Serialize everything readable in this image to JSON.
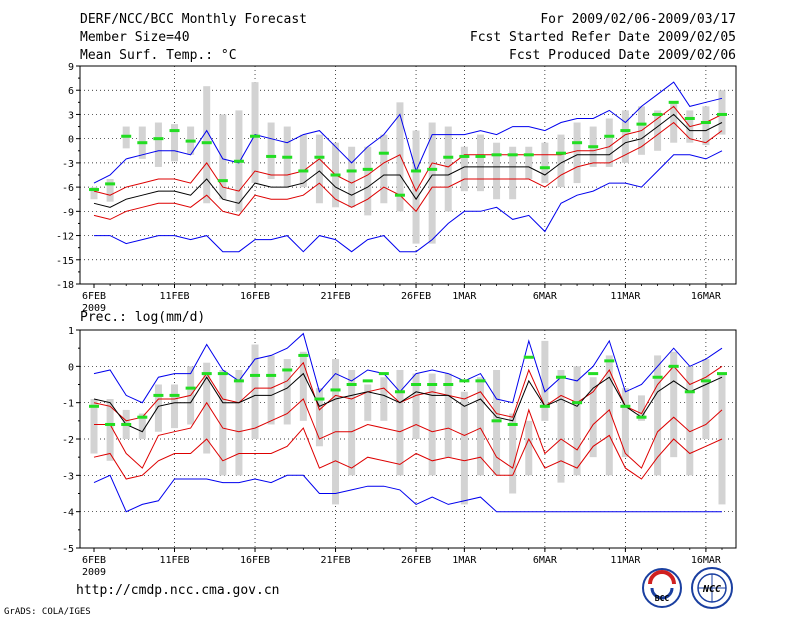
{
  "header": {
    "title": "DERF/NCC/BCC Monthly Forecast",
    "member": "Member Size=40",
    "variable": "Mean Surf. Temp.: °C",
    "period": "For 2009/02/06-2009/03/17",
    "refer": "Fcst Started Refer Date 2009/02/05",
    "produced": "Fcst Produced Date 2009/02/06"
  },
  "footer": {
    "url": "http://cmdp.ncc.cma.gov.cn",
    "grads": "GrADS: COLA/IGES",
    "logo1": "BCC",
    "logo2": "NCC"
  },
  "colors": {
    "max_min": "#0000ee",
    "spread": "#dd0000",
    "mean": "#000000",
    "box": "#d3d3d3",
    "marker": "#22dd22"
  },
  "chart_data": [
    {
      "type": "line",
      "title": "Mean Surf. Temp.: °C",
      "ylim": [
        -18,
        9
      ],
      "yticks": [
        -18,
        -15,
        -12,
        -9,
        -6,
        -3,
        0,
        3,
        6,
        9
      ],
      "grid": true,
      "xticks": [
        {
          "day": 0,
          "label": "6FEB",
          "sublabel": "2009"
        },
        {
          "day": 5,
          "label": "11FEB"
        },
        {
          "day": 10,
          "label": "16FEB"
        },
        {
          "day": 15,
          "label": "21FEB"
        },
        {
          "day": 20,
          "label": "26FEB"
        },
        {
          "day": 23,
          "label": "1MAR"
        },
        {
          "day": 28,
          "label": "6MAR"
        },
        {
          "day": 33,
          "label": "11MAR"
        },
        {
          "day": 38,
          "label": "16MAR"
        }
      ],
      "x": [
        0,
        1,
        2,
        3,
        4,
        5,
        6,
        7,
        8,
        9,
        10,
        11,
        12,
        13,
        14,
        15,
        16,
        17,
        18,
        19,
        20,
        21,
        22,
        23,
        24,
        25,
        26,
        27,
        28,
        29,
        30,
        31,
        32,
        33,
        34,
        35,
        36,
        37,
        38,
        39
      ],
      "box_low": [
        -7.5,
        -7.8,
        -1.2,
        -2.5,
        -3.5,
        -2.8,
        -2.0,
        -8.0,
        -7.5,
        -9.0,
        -5.5,
        -5.0,
        -6.0,
        -6.0,
        -8.0,
        -8.5,
        -8.5,
        -9.5,
        -8.0,
        -9.0,
        -13.0,
        -13.0,
        -9.0,
        -6.5,
        -6.5,
        -7.5,
        -7.5,
        -5.0,
        -5.5,
        -6.0,
        -5.5,
        -3.5,
        -3.5,
        -3.0,
        -2.0,
        -1.5,
        -0.5,
        -0.5,
        -0.8,
        0.5
      ],
      "box_high": [
        -6.0,
        -5.0,
        1.5,
        1.5,
        2.0,
        1.8,
        1.5,
        6.5,
        3.0,
        3.5,
        7.0,
        2.0,
        1.5,
        0.5,
        0.5,
        -0.5,
        -1.0,
        -1.0,
        0.5,
        4.5,
        1.0,
        2.0,
        1.5,
        -1.0,
        0.5,
        -0.5,
        -1.0,
        -1.0,
        -0.5,
        0.5,
        2.0,
        1.5,
        2.5,
        3.5,
        4.0,
        3.5,
        4.5,
        3.5,
        4.0,
        6.0
      ],
      "marker": [
        -6.3,
        -5.6,
        0.3,
        -0.5,
        0.0,
        1.0,
        -0.3,
        -0.5,
        -5.2,
        -2.8,
        0.3,
        -2.2,
        -2.3,
        -4.0,
        -2.3,
        -4.5,
        -4.0,
        -3.8,
        -1.8,
        -7.0,
        -4.0,
        -3.8,
        -2.3,
        -2.2,
        -2.2,
        -2.0,
        -2.0,
        -2.0,
        -3.6,
        -1.8,
        -0.5,
        -1.0,
        0.3,
        1.0,
        1.8,
        3.0,
        4.5,
        2.5,
        2.0,
        3.0
      ],
      "series": [
        {
          "name": "max",
          "role": "max_min",
          "values": [
            -5.5,
            -4.5,
            -2.5,
            -2.0,
            -1.5,
            -1.5,
            -2.0,
            1.0,
            -2.5,
            -3.0,
            0.5,
            0.0,
            -0.5,
            0.5,
            1.0,
            -1.0,
            -3.0,
            -1.0,
            0.5,
            3.0,
            -4.0,
            0.5,
            0.5,
            0.5,
            1.0,
            0.5,
            1.5,
            1.5,
            1.0,
            2.0,
            2.5,
            2.5,
            3.5,
            2.0,
            4.0,
            5.5,
            7.0,
            4.0,
            4.5,
            5.0
          ]
        },
        {
          "name": "upper",
          "role": "spread",
          "values": [
            -6.5,
            -7.0,
            -6.0,
            -5.5,
            -5.0,
            -5.0,
            -5.5,
            -3.0,
            -6.0,
            -6.5,
            -4.0,
            -4.5,
            -4.5,
            -4.0,
            -2.5,
            -4.5,
            -5.5,
            -4.5,
            -3.0,
            -2.0,
            -6.5,
            -3.0,
            -3.5,
            -2.0,
            -2.0,
            -2.0,
            -2.0,
            -2.0,
            -2.0,
            -2.0,
            -1.5,
            -1.5,
            -1.0,
            0.5,
            1.0,
            2.5,
            4.0,
            1.5,
            2.0,
            3.0
          ]
        },
        {
          "name": "mean",
          "role": "mean",
          "values": [
            -8.0,
            -8.5,
            -7.5,
            -7.0,
            -6.5,
            -6.5,
            -7.0,
            -5.0,
            -7.5,
            -8.0,
            -5.5,
            -6.0,
            -6.0,
            -5.5,
            -4.0,
            -6.0,
            -7.0,
            -6.0,
            -4.5,
            -4.5,
            -7.5,
            -4.5,
            -4.5,
            -3.5,
            -3.5,
            -3.5,
            -3.5,
            -3.5,
            -4.5,
            -3.0,
            -2.0,
            -2.0,
            -2.0,
            -0.5,
            0.0,
            1.5,
            3.0,
            1.0,
            1.0,
            2.0
          ]
        },
        {
          "name": "lower",
          "role": "spread",
          "values": [
            -9.5,
            -10.0,
            -9.0,
            -8.5,
            -8.0,
            -8.0,
            -8.5,
            -7.0,
            -9.0,
            -9.5,
            -7.0,
            -7.5,
            -7.5,
            -7.0,
            -5.5,
            -7.5,
            -8.5,
            -7.5,
            -6.0,
            -7.0,
            -9.0,
            -6.0,
            -6.0,
            -5.0,
            -5.0,
            -5.0,
            -5.0,
            -5.0,
            -6.0,
            -4.5,
            -3.5,
            -3.0,
            -3.0,
            -2.0,
            -1.0,
            0.5,
            2.0,
            0.0,
            -0.5,
            1.0
          ]
        },
        {
          "name": "min",
          "role": "max_min",
          "values": [
            -12.0,
            -12.0,
            -13.0,
            -12.5,
            -12.0,
            -12.0,
            -12.5,
            -12.0,
            -14.0,
            -14.0,
            -12.5,
            -12.5,
            -12.0,
            -14.0,
            -12.0,
            -12.5,
            -14.0,
            -12.5,
            -12.0,
            -14.0,
            -14.0,
            -12.5,
            -10.5,
            -9.0,
            -9.0,
            -8.5,
            -10.0,
            -9.5,
            -11.5,
            -8.0,
            -7.0,
            -6.5,
            -5.5,
            -5.5,
            -6.0,
            -4.0,
            -2.0,
            -2.0,
            -2.5,
            -1.5
          ]
        }
      ]
    },
    {
      "type": "line",
      "title": "Prec.: log(mm/d)",
      "ylim": [
        -5,
        1
      ],
      "yticks": [
        -5,
        -4,
        -3,
        -2,
        -1,
        0,
        1
      ],
      "grid": true,
      "xticks": [
        {
          "day": 0,
          "label": "6FEB",
          "sublabel": "2009"
        },
        {
          "day": 5,
          "label": "11FEB"
        },
        {
          "day": 10,
          "label": "16FEB"
        },
        {
          "day": 15,
          "label": "21FEB"
        },
        {
          "day": 20,
          "label": "26FEB"
        },
        {
          "day": 23,
          "label": "1MAR"
        },
        {
          "day": 28,
          "label": "6MAR"
        },
        {
          "day": 33,
          "label": "11MAR"
        },
        {
          "day": 38,
          "label": "16MAR"
        }
      ],
      "x": [
        0,
        1,
        2,
        3,
        4,
        5,
        6,
        7,
        8,
        9,
        10,
        11,
        12,
        13,
        14,
        15,
        16,
        17,
        18,
        19,
        20,
        21,
        22,
        23,
        24,
        25,
        26,
        27,
        28,
        29,
        30,
        31,
        32,
        33,
        34,
        35,
        36,
        37,
        38,
        39
      ],
      "box_low": [
        -2.4,
        -2.6,
        -2.0,
        -2.0,
        -1.8,
        -1.7,
        -1.6,
        -2.4,
        -3.0,
        -3.0,
        -2.0,
        -1.6,
        -1.6,
        -1.5,
        -2.2,
        -3.8,
        -3.0,
        -1.5,
        -1.5,
        -3.0,
        -2.0,
        -3.0,
        -2.5,
        -3.8,
        -3.0,
        -3.0,
        -3.5,
        -3.0,
        -1.5,
        -3.2,
        -3.0,
        -2.5,
        -3.0,
        -2.5,
        -1.5,
        -3.0,
        -2.5,
        -3.0,
        -2.0,
        -3.8
      ],
      "box_high": [
        -0.9,
        -0.9,
        -1.2,
        -1.3,
        -0.5,
        -0.5,
        0.0,
        0.1,
        -0.1,
        -0.1,
        0.6,
        0.3,
        0.2,
        0.4,
        -0.6,
        0.2,
        -0.1,
        -0.5,
        -0.3,
        -0.1,
        -0.2,
        -0.2,
        -0.2,
        -0.7,
        -0.3,
        -0.1,
        -1.3,
        -1.5,
        0.7,
        -0.1,
        0.0,
        -0.3,
        0.3,
        -0.6,
        -0.8,
        0.3,
        0.4,
        0.0,
        0.2,
        -0.2
      ],
      "marker": [
        -1.1,
        -1.6,
        -1.6,
        -1.4,
        -0.8,
        -0.8,
        -0.6,
        -0.2,
        -0.2,
        -0.4,
        -0.25,
        -0.25,
        -0.1,
        0.3,
        -0.9,
        -0.65,
        -0.5,
        -0.4,
        -0.2,
        -0.7,
        -0.5,
        -0.5,
        -0.5,
        -0.4,
        -0.4,
        -1.5,
        -1.6,
        0.25,
        -1.1,
        -0.3,
        -1.0,
        -0.2,
        0.15,
        -1.1,
        -1.4,
        -0.3,
        0.0,
        -0.7,
        -0.4,
        -0.2
      ],
      "series": [
        {
          "name": "max",
          "role": "max_min",
          "values": [
            -0.2,
            -0.1,
            -0.8,
            -1.0,
            -0.3,
            -0.2,
            -0.2,
            0.6,
            -0.1,
            -0.4,
            0.2,
            0.3,
            0.5,
            0.9,
            -0.7,
            -0.2,
            -0.4,
            -0.1,
            -0.2,
            -0.7,
            -0.2,
            -0.1,
            -0.2,
            -0.4,
            -0.2,
            -0.9,
            -1.0,
            0.7,
            -0.7,
            -0.3,
            -0.4,
            0.0,
            0.7,
            -0.7,
            -0.5,
            0.0,
            0.5,
            0.0,
            0.2,
            0.5
          ]
        },
        {
          "name": "upper",
          "role": "spread",
          "values": [
            -1.0,
            -1.1,
            -1.5,
            -1.4,
            -0.9,
            -0.9,
            -0.8,
            -0.2,
            -0.9,
            -1.0,
            -0.6,
            -0.6,
            -0.4,
            0.1,
            -1.2,
            -0.8,
            -0.9,
            -0.7,
            -0.6,
            -1.0,
            -0.8,
            -0.7,
            -0.8,
            -0.9,
            -0.7,
            -1.3,
            -1.4,
            -0.1,
            -1.1,
            -0.8,
            -1.0,
            -0.7,
            -0.1,
            -1.1,
            -1.3,
            -0.5,
            0.0,
            -0.5,
            -0.3,
            0.0
          ]
        },
        {
          "name": "mean",
          "role": "mean",
          "values": [
            -0.9,
            -1.0,
            -1.6,
            -1.8,
            -1.1,
            -1.0,
            -1.0,
            -0.3,
            -1.0,
            -1.0,
            -0.8,
            -0.8,
            -0.6,
            -0.2,
            -1.1,
            -0.9,
            -0.8,
            -0.7,
            -0.8,
            -1.0,
            -0.7,
            -0.8,
            -0.8,
            -1.1,
            -0.9,
            -1.4,
            -1.5,
            -0.4,
            -1.1,
            -0.9,
            -1.1,
            -0.6,
            -0.3,
            -1.1,
            -1.4,
            -0.7,
            -0.4,
            -0.7,
            -0.5,
            -0.3
          ]
        },
        {
          "name": "lower",
          "role": "spread",
          "values": [
            -1.6,
            -1.6,
            -2.4,
            -2.8,
            -1.9,
            -1.8,
            -1.7,
            -1.0,
            -1.7,
            -1.8,
            -1.7,
            -1.5,
            -1.3,
            -0.9,
            -2.0,
            -1.8,
            -1.8,
            -1.6,
            -1.7,
            -1.8,
            -1.6,
            -1.8,
            -1.7,
            -1.9,
            -1.7,
            -2.5,
            -2.8,
            -1.2,
            -2.4,
            -2.0,
            -2.3,
            -1.6,
            -1.2,
            -2.4,
            -2.8,
            -1.8,
            -1.4,
            -1.8,
            -1.6,
            -1.2
          ]
        },
        {
          "name": "lowest",
          "role": "spread",
          "values": [
            -2.5,
            -2.4,
            -3.1,
            -3.0,
            -2.6,
            -2.4,
            -2.4,
            -2.0,
            -2.6,
            -2.4,
            -2.4,
            -2.4,
            -2.2,
            -1.7,
            -2.8,
            -2.6,
            -2.8,
            -2.5,
            -2.6,
            -2.7,
            -2.4,
            -2.6,
            -2.5,
            -2.6,
            -2.5,
            -3.0,
            -3.0,
            -2.0,
            -2.8,
            -2.6,
            -2.8,
            -2.2,
            -1.9,
            -2.8,
            -3.1,
            -2.5,
            -2.0,
            -2.4,
            -2.2,
            -2.0
          ]
        },
        {
          "name": "min",
          "role": "max_min",
          "values": [
            -3.2,
            -3.0,
            -4.0,
            -3.8,
            -3.7,
            -3.1,
            -3.1,
            -3.1,
            -3.2,
            -3.2,
            -3.1,
            -3.2,
            -3.0,
            -3.0,
            -3.5,
            -3.5,
            -3.4,
            -3.3,
            -3.3,
            -3.4,
            -3.8,
            -3.6,
            -3.8,
            -3.7,
            -3.6,
            -4.0,
            -4.0,
            -4.0,
            -4.0,
            -4.0,
            -4.0,
            -4.0,
            -4.0,
            -4.0,
            -4.0,
            -4.0,
            -4.0,
            -4.0,
            -4.0,
            -4.0
          ]
        }
      ]
    }
  ]
}
